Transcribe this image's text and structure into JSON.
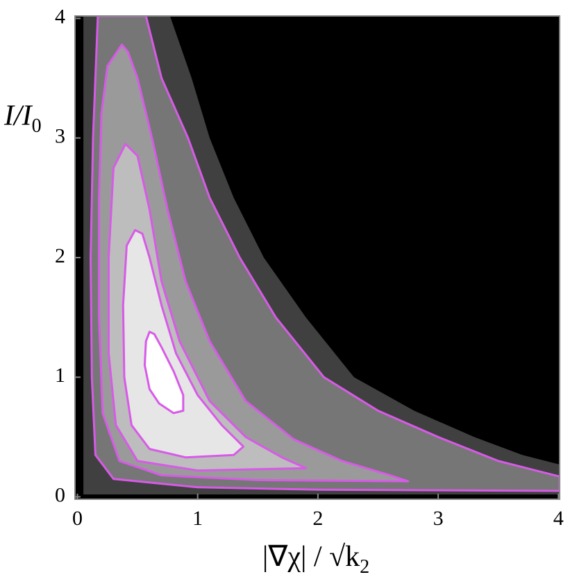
{
  "chart_data": {
    "type": "contour",
    "xlabel": "|∇χ| / √k",
    "xlabel_sub": "2",
    "ylabel": "I/I",
    "ylabel_sub": "0",
    "xlim": [
      -0.02,
      4.01
    ],
    "ylim": [
      -0.02,
      4.02
    ],
    "xticks": [
      0,
      1,
      2,
      3,
      4
    ],
    "yticks": [
      0,
      1,
      2,
      3,
      4
    ],
    "background": "#000000",
    "line_color": "#d85ae8",
    "contours": [
      {
        "fill": "#404040",
        "outline": false,
        "x": [
          0.05,
          0.05,
          0.77,
          0.95,
          1.1,
          1.3,
          1.55,
          1.9,
          2.3,
          2.8,
          3.3,
          3.7,
          4.01,
          4.01
        ],
        "y": [
          0.02,
          4.02,
          4.02,
          3.5,
          3.0,
          2.5,
          2.0,
          1.5,
          1.0,
          0.72,
          0.5,
          0.35,
          0.27,
          0.02
        ]
      },
      {
        "fill": "#767676",
        "outline": true,
        "x": [
          0.17,
          0.13,
          0.11,
          0.12,
          0.15,
          0.3,
          1.0,
          2.0,
          4.01,
          4.01,
          3.5,
          3.0,
          2.5,
          2.05,
          1.65,
          1.35,
          1.1,
          0.92,
          0.7,
          0.57
        ],
        "y": [
          4.02,
          3.0,
          2.0,
          1.0,
          0.35,
          0.15,
          0.08,
          0.06,
          0.05,
          0.17,
          0.3,
          0.5,
          0.72,
          1.0,
          1.5,
          2.0,
          2.5,
          3.0,
          3.5,
          4.02
        ]
      },
      {
        "fill": "#9a9a9a",
        "outline": true,
        "x": [
          0.37,
          0.25,
          0.2,
          0.18,
          0.18,
          0.21,
          0.35,
          0.7,
          1.5,
          2.75,
          2.6,
          2.2,
          1.8,
          1.4,
          1.1,
          0.9,
          0.75,
          0.62,
          0.5,
          0.42
        ],
        "y": [
          3.78,
          3.6,
          3.2,
          2.5,
          1.5,
          0.7,
          0.3,
          0.18,
          0.14,
          0.13,
          0.18,
          0.3,
          0.48,
          0.8,
          1.3,
          1.8,
          2.4,
          3.0,
          3.5,
          3.72
        ]
      },
      {
        "fill": "#bdbdbd",
        "outline": true,
        "x": [
          0.4,
          0.3,
          0.26,
          0.26,
          0.32,
          0.5,
          1.0,
          1.9,
          1.7,
          1.4,
          1.1,
          0.85,
          0.7,
          0.6,
          0.5
        ],
        "y": [
          2.95,
          2.75,
          2.0,
          1.2,
          0.6,
          0.3,
          0.22,
          0.24,
          0.33,
          0.5,
          0.8,
          1.3,
          1.8,
          2.4,
          2.85
        ]
      },
      {
        "fill": "#e6e6e6",
        "outline": true,
        "x": [
          0.48,
          0.41,
          0.38,
          0.39,
          0.45,
          0.6,
          0.9,
          1.3,
          1.38,
          1.2,
          1.0,
          0.82,
          0.7,
          0.6,
          0.54
        ],
        "y": [
          2.23,
          2.1,
          1.6,
          1.0,
          0.6,
          0.4,
          0.33,
          0.35,
          0.42,
          0.6,
          0.85,
          1.2,
          1.6,
          2.0,
          2.2
        ]
      },
      {
        "fill": "#ffffff",
        "outline": true,
        "x": [
          0.6,
          0.57,
          0.56,
          0.6,
          0.68,
          0.8,
          0.88,
          0.88,
          0.8,
          0.7,
          0.64
        ],
        "y": [
          1.38,
          1.3,
          1.1,
          0.9,
          0.78,
          0.7,
          0.72,
          0.85,
          1.05,
          1.25,
          1.36
        ]
      }
    ]
  }
}
